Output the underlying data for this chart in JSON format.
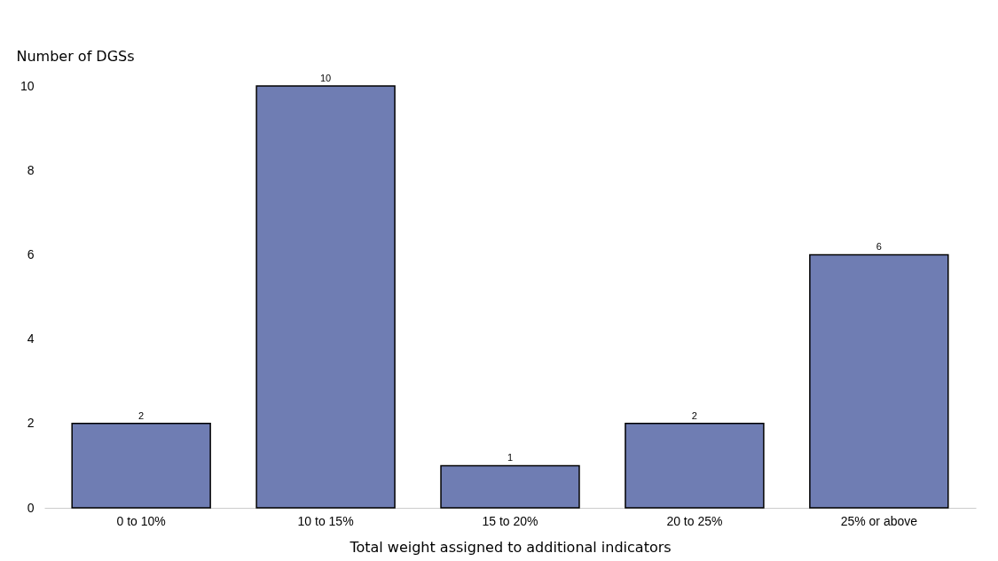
{
  "chart_data": {
    "type": "bar",
    "xlabel": "Total weight assigned to additional indicators",
    "ylabel": "Number of DGSs",
    "categories": [
      "0 to 10%",
      "10 to 15%",
      "15 to 20%",
      "20 to 25%",
      "25% or above"
    ],
    "values": [
      2,
      10,
      1,
      2,
      6
    ],
    "color": "#6f7db3",
    "ylim": [
      0,
      10
    ],
    "yticks": [
      0,
      2,
      4,
      6,
      8,
      10
    ],
    "grid": false,
    "data_labels": true
  }
}
